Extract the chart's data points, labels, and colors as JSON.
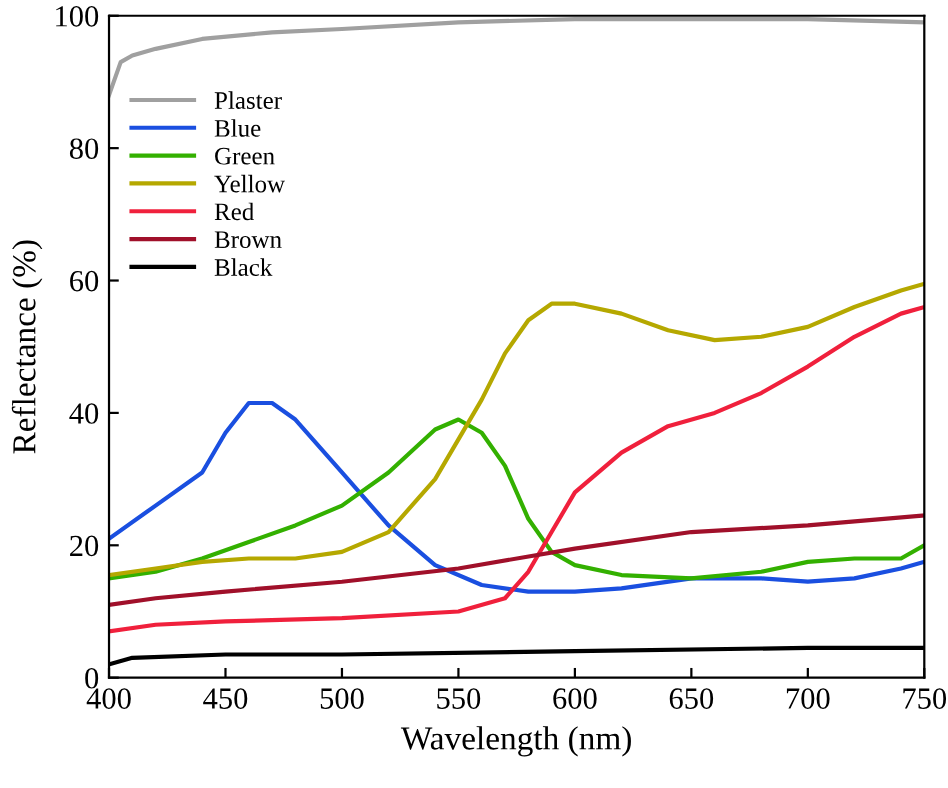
{
  "chart_data": {
    "type": "line",
    "xlabel": "Wavelength (nm)",
    "ylabel": "Reflectance (%)",
    "xlim": [
      400,
      750
    ],
    "xticks": [
      400,
      450,
      500,
      550,
      600,
      650,
      700,
      750
    ],
    "ylim": [
      0,
      100
    ],
    "yticks": [
      0,
      20,
      40,
      60,
      80,
      100
    ],
    "grid": false,
    "legend": "top left",
    "marker": "none",
    "line_style": "solid",
    "series": [
      {
        "name": "Plaster",
        "color": "#a0a0a0",
        "x": [
          400,
          405,
          410,
          420,
          440,
          470,
          500,
          550,
          600,
          650,
          700,
          750
        ],
        "values": [
          88,
          93,
          94,
          95,
          96.5,
          97.5,
          98,
          99,
          99.5,
          99.5,
          99.5,
          99
        ]
      },
      {
        "name": "Blue",
        "color": "#1a4fe0",
        "x": [
          400,
          420,
          440,
          450,
          460,
          470,
          480,
          500,
          520,
          540,
          560,
          580,
          600,
          620,
          650,
          680,
          700,
          720,
          740,
          750
        ],
        "values": [
          21,
          26,
          31,
          37,
          41.5,
          41.5,
          39,
          31,
          23,
          17,
          14,
          13,
          13,
          13.5,
          15,
          15,
          14.5,
          15,
          16.5,
          17.5
        ]
      },
      {
        "name": "Green",
        "color": "#33b000",
        "x": [
          400,
          420,
          440,
          460,
          480,
          500,
          520,
          540,
          550,
          560,
          570,
          580,
          590,
          600,
          620,
          650,
          680,
          700,
          720,
          740,
          750
        ],
        "values": [
          15,
          16,
          18,
          20.5,
          23,
          26,
          31,
          37.5,
          39,
          37,
          32,
          24,
          19,
          17,
          15.5,
          15,
          16,
          17.5,
          18,
          18,
          20
        ]
      },
      {
        "name": "Yellow",
        "color": "#b5a800",
        "x": [
          400,
          420,
          440,
          460,
          480,
          500,
          520,
          540,
          560,
          570,
          580,
          590,
          600,
          620,
          640,
          660,
          680,
          700,
          720,
          740,
          750
        ],
        "values": [
          15.5,
          16.5,
          17.5,
          18,
          18,
          19,
          22,
          30,
          42,
          49,
          54,
          56.5,
          56.5,
          55,
          52.5,
          51,
          51.5,
          53,
          56,
          58.5,
          59.5
        ]
      },
      {
        "name": "Red",
        "color": "#f0203c",
        "x": [
          400,
          420,
          450,
          500,
          550,
          570,
          580,
          590,
          600,
          620,
          640,
          660,
          680,
          700,
          720,
          740,
          750
        ],
        "values": [
          7,
          8,
          8.5,
          9,
          10,
          12,
          16,
          22,
          28,
          34,
          38,
          40,
          43,
          47,
          51.5,
          55,
          56
        ]
      },
      {
        "name": "Brown",
        "color": "#a0102a",
        "x": [
          400,
          420,
          450,
          500,
          550,
          600,
          650,
          700,
          750
        ],
        "values": [
          11,
          12,
          13,
          14.5,
          16.5,
          19.5,
          22,
          23,
          24.5
        ]
      },
      {
        "name": "Black",
        "color": "#000000",
        "x": [
          400,
          410,
          450,
          500,
          600,
          700,
          750
        ],
        "values": [
          2,
          3,
          3.5,
          3.5,
          4,
          4.5,
          4.5
        ]
      }
    ]
  }
}
